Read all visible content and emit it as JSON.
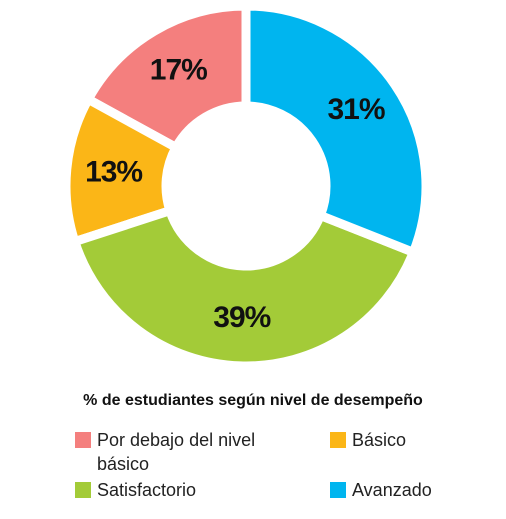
{
  "chart_data": {
    "type": "donut",
    "title": "% de estudiantes según nivel de desempeño",
    "categories": [
      "Por debajo del nivel básico",
      "Básico",
      "Satisfactorio",
      "Avanzado"
    ],
    "values": [
      17,
      13,
      39,
      31
    ],
    "value_labels": [
      "17%",
      "13%",
      "39%",
      "31%"
    ],
    "colors": [
      "#f47f7e",
      "#fbb617",
      "#a3cb38",
      "#00b5ef"
    ]
  }
}
